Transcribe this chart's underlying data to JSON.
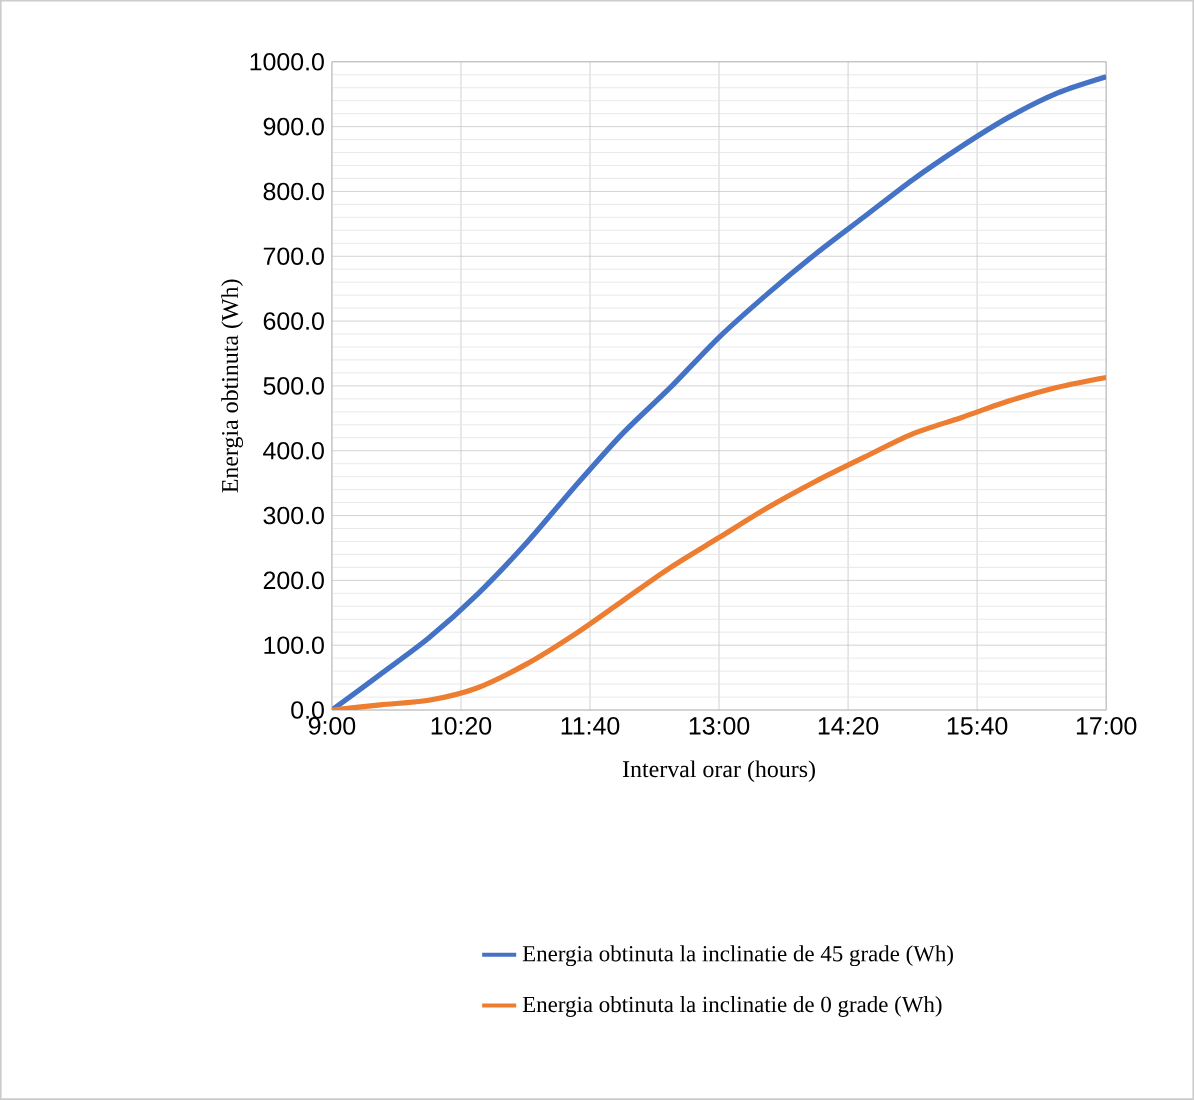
{
  "chart_data": {
    "type": "line",
    "xlabel": "Interval orar (hours)",
    "ylabel": "Energia obtinuta (Wh)",
    "x": [
      9,
      9.5,
      10,
      10.5,
      11,
      11.5,
      12,
      12.5,
      13,
      13.5,
      14,
      14.5,
      15,
      15.5,
      16,
      16.5,
      17
    ],
    "series": [
      {
        "name": "Energia obtinuta la inclinatie de 45 grade (Wh)",
        "color": "#4472c4",
        "values": [
          0,
          55,
          111,
          178,
          256,
          343,
          426,
          498,
          575,
          642,
          704,
          761,
          818,
          869,
          915,
          952,
          977
        ]
      },
      {
        "name": "Energia obtinuta la inclinatie de 0 grade (Wh)",
        "color": "#ed7d31",
        "values": [
          0,
          8,
          15,
          34,
          70,
          116,
          168,
          220,
          266,
          312,
          353,
          390,
          426,
          451,
          477,
          498,
          513
        ]
      }
    ],
    "xlim": [
      9,
      17
    ],
    "xticks": [
      {
        "value": 9,
        "label": "9:00"
      },
      {
        "value": 10.333333,
        "label": "10:20"
      },
      {
        "value": 11.666667,
        "label": "11:40"
      },
      {
        "value": 13,
        "label": "13:00"
      },
      {
        "value": 14.333333,
        "label": "14:20"
      },
      {
        "value": 15.666667,
        "label": "15:40"
      },
      {
        "value": 17,
        "label": "17:00"
      }
    ],
    "ylim": [
      0,
      1000
    ],
    "yticks": [
      {
        "value": 0,
        "label": "0.0"
      },
      {
        "value": 100,
        "label": "100.0"
      },
      {
        "value": 200,
        "label": "200.0"
      },
      {
        "value": 300,
        "label": "300.0"
      },
      {
        "value": 400,
        "label": "400.0"
      },
      {
        "value": 500,
        "label": "500.0"
      },
      {
        "value": 600,
        "label": "600.0"
      },
      {
        "value": 700,
        "label": "700.0"
      },
      {
        "value": 800,
        "label": "800.0"
      },
      {
        "value": 900,
        "label": "900.0"
      },
      {
        "value": 1000,
        "label": "1000.0"
      }
    ],
    "grid": true,
    "legend": "bottom",
    "marker": "none",
    "line_style": "solid"
  }
}
